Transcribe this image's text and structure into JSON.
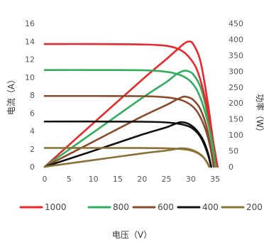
{
  "chart_data": {
    "type": "line",
    "title": "",
    "xlabel": "电压（V）",
    "ylabel_left": "电流（A）",
    "ylabel_right": "功率（W）",
    "xlim": [
      0,
      36
    ],
    "ylim_left": [
      0,
      16
    ],
    "ylim_right": [
      0,
      450
    ],
    "x_ticks": [
      0,
      5,
      10,
      15,
      20,
      25,
      30,
      35
    ],
    "y_ticks_left": [
      0,
      2,
      4,
      6,
      8,
      10,
      12,
      14,
      16
    ],
    "y_ticks_right": [
      0,
      50,
      100,
      150,
      200,
      250,
      300,
      350,
      400,
      450
    ],
    "grid": false,
    "legend_position": "bottom",
    "series": [
      {
        "name": "1000",
        "color": "#e8282b",
        "current": {
          "x": [
            0,
            10,
            20,
            25,
            28,
            30,
            31.5,
            33,
            34.2,
            35.5
          ],
          "y": [
            13.7,
            13.7,
            13.65,
            13.5,
            13.0,
            12.0,
            10.5,
            7.5,
            4.0,
            0
          ]
        },
        "power": {
          "x": [
            0,
            10,
            20,
            25,
            27,
            28.5,
            29.5,
            30.5,
            32,
            33.5,
            34.6,
            35.5
          ],
          "y": [
            0,
            137,
            273,
            338,
            365,
            385,
            393,
            385,
            330,
            200,
            80,
            0
          ]
        }
      },
      {
        "name": "800",
        "color": "#2fae5c",
        "current": {
          "x": [
            0,
            10,
            20,
            25,
            28,
            30,
            31.5,
            33,
            34.3,
            35.1
          ],
          "y": [
            10.8,
            10.8,
            10.78,
            10.6,
            10.2,
            9.5,
            8.3,
            6.0,
            3.0,
            0
          ]
        },
        "power": {
          "x": [
            0,
            10,
            20,
            25,
            27,
            28.5,
            29.5,
            30.5,
            32,
            33.5,
            34.3,
            35.1
          ],
          "y": [
            0,
            108,
            216,
            266,
            290,
            301,
            300,
            290,
            250,
            160,
            80,
            0
          ]
        }
      },
      {
        "name": "600",
        "color": "#8b4a2b",
        "current": {
          "x": [
            0,
            10,
            20,
            25,
            28,
            30,
            31.5,
            33,
            34,
            34.7
          ],
          "y": [
            7.9,
            7.9,
            7.88,
            7.75,
            7.45,
            6.9,
            6.0,
            4.2,
            2.2,
            0
          ]
        },
        "power": {
          "x": [
            0,
            10,
            20,
            25,
            27,
            28.5,
            29.5,
            30.5,
            32,
            33.5,
            34.7
          ],
          "y": [
            0,
            79,
            158,
            194,
            210,
            220,
            218,
            210,
            180,
            110,
            0
          ]
        }
      },
      {
        "name": "400",
        "color": "#111111",
        "current": {
          "x": [
            0,
            10,
            20,
            25,
            28,
            30,
            31.5,
            32.5,
            33.5,
            34.2
          ],
          "y": [
            5.05,
            5.05,
            5.03,
            4.95,
            4.75,
            4.4,
            3.7,
            2.8,
            1.4,
            0
          ]
        },
        "power": {
          "x": [
            0,
            10,
            20,
            25,
            27,
            28,
            29.5,
            31,
            32.5,
            33.5,
            34.2
          ],
          "y": [
            0,
            50,
            101,
            124,
            136,
            140,
            135,
            118,
            85,
            45,
            0
          ]
        }
      },
      {
        "name": "200",
        "color": "#8a7135",
        "current": {
          "x": [
            0,
            10,
            20,
            25,
            28,
            30,
            31.5,
            32.5,
            33.3,
            33.8
          ],
          "y": [
            2.1,
            2.1,
            2.09,
            2.06,
            1.98,
            1.82,
            1.5,
            1.1,
            0.55,
            0
          ]
        },
        "power": {
          "x": [
            0,
            10,
            20,
            25,
            27,
            28,
            29.5,
            31,
            32.5,
            33.3,
            33.8
          ],
          "y": [
            0,
            21,
            42,
            51,
            56,
            58,
            56,
            48,
            32,
            14,
            0
          ]
        }
      }
    ]
  }
}
